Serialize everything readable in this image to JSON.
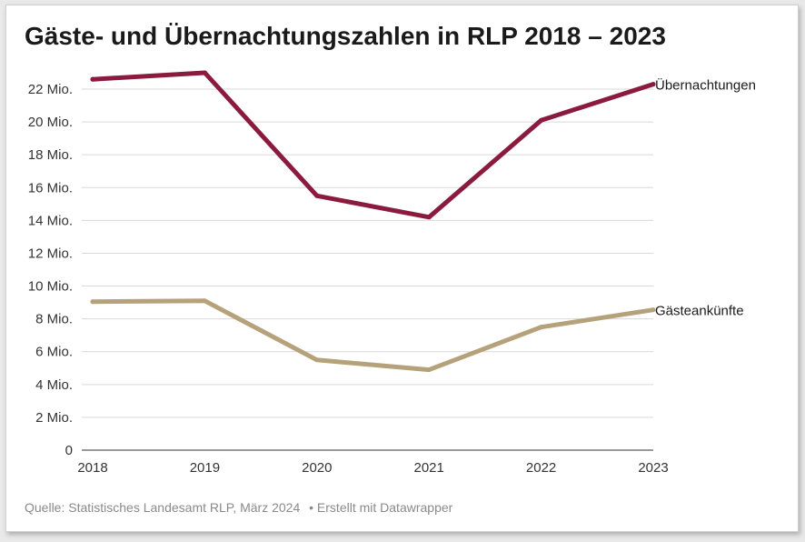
{
  "chart_data": {
    "type": "line",
    "title": "Gäste- und Übernachtungszahlen in RLP 2018 – 2023",
    "x": [
      "2018",
      "2019",
      "2020",
      "2021",
      "2022",
      "2023"
    ],
    "ylim": [
      0,
      22000000
    ],
    "yticks": [
      {
        "value": 0,
        "label": "0"
      },
      {
        "value": 2000000,
        "label": "2 Mio."
      },
      {
        "value": 4000000,
        "label": "4 Mio."
      },
      {
        "value": 6000000,
        "label": "6 Mio."
      },
      {
        "value": 8000000,
        "label": "8 Mio."
      },
      {
        "value": 10000000,
        "label": "10 Mio."
      },
      {
        "value": 12000000,
        "label": "12 Mio."
      },
      {
        "value": 14000000,
        "label": "14 Mio."
      },
      {
        "value": 16000000,
        "label": "16 Mio."
      },
      {
        "value": 18000000,
        "label": "18 Mio."
      },
      {
        "value": 20000000,
        "label": "20 Mio."
      },
      {
        "value": 22000000,
        "label": "22 Mio."
      }
    ],
    "grid": true,
    "series": [
      {
        "name": "Übernachtungen",
        "color": "#8b1a3f",
        "values": [
          22600000,
          23000000,
          15500000,
          14200000,
          20100000,
          22300000
        ]
      },
      {
        "name": "Gästeankünfte",
        "color": "#b5a27a",
        "values": [
          9050000,
          9100000,
          5500000,
          4900000,
          7500000,
          8550000
        ]
      }
    ]
  },
  "footer": {
    "source": "Quelle: Statistisches Landesamt RLP, März 2024",
    "credit": "• Erstellt mit Datawrapper"
  }
}
